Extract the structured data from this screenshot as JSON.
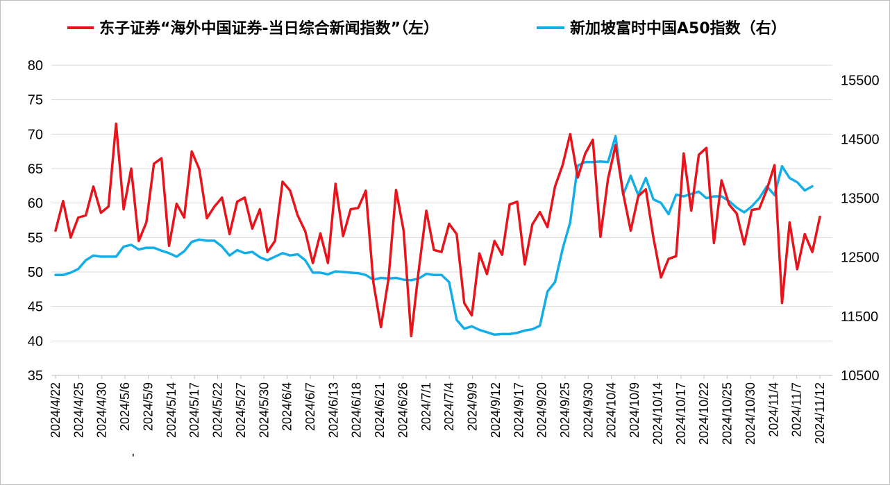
{
  "chart_data": {
    "type": "line",
    "title": "",
    "grid": true,
    "legend_position": "top",
    "left_axis": {
      "ylim": [
        35,
        80
      ],
      "ticks": [
        35,
        40,
        45,
        50,
        55,
        60,
        65,
        70,
        75,
        80
      ]
    },
    "right_axis": {
      "ylim": [
        10500,
        15750
      ],
      "ticks": [
        10500,
        11500,
        12500,
        13500,
        14500,
        15500
      ]
    },
    "x_tick_labels": [
      "2024/4/22",
      "2024/4/25",
      "2024/4/30",
      "2024/5/6",
      "2024/5/9",
      "2024/5/14",
      "2024/5/17",
      "2024/5/22",
      "2024/5/27",
      "2024/5/30",
      "2024/6/4",
      "2024/6/7",
      "2024/6/13",
      "2024/6/18",
      "2024/6/21",
      "2024/6/26",
      "2024/7/1",
      "2024/7/4",
      "2024/9/9",
      "2024/9/12",
      "2024/9/17",
      "2024/9/20",
      "2024/9/25",
      "2024/9/30",
      "2024/10/4",
      "2024/10/9",
      "2024/10/14",
      "2024/10/17",
      "2024/10/22",
      "2024/10/25",
      "2024/10/30",
      "2024/11/4",
      "2024/11/7",
      "2024/11/12"
    ],
    "x_stray_mark": "'",
    "series": [
      {
        "name": "东子证券“海外中国证券-当日综合新闻指数”（左）",
        "axis": "left",
        "color": "#e8141c",
        "values": [
          56.0,
          60.3,
          55.0,
          57.9,
          58.2,
          62.4,
          58.6,
          59.5,
          71.5,
          59.1,
          65.0,
          54.5,
          57.2,
          65.7,
          66.5,
          53.8,
          59.9,
          57.9,
          67.5,
          64.9,
          57.8,
          59.5,
          60.8,
          55.5,
          60.2,
          60.8,
          56.3,
          59.1,
          52.9,
          54.5,
          63.1,
          61.8,
          58.2,
          55.9,
          51.3,
          55.6,
          51.3,
          62.8,
          55.2,
          59.1,
          59.3,
          61.8,
          48.5,
          42.0,
          49.0,
          61.9,
          56.0,
          40.7,
          50.3,
          58.9,
          53.2,
          52.9,
          57.0,
          55.5,
          45.5,
          43.7,
          52.7,
          49.7,
          54.5,
          52.5,
          59.8,
          60.2,
          51.1,
          56.9,
          58.7,
          56.5,
          62.4,
          65.5,
          70.0,
          63.7,
          67.2,
          69.2,
          55.1,
          63.5,
          68.4,
          61.4,
          56.0,
          61.0,
          62.0,
          55.0,
          49.2,
          51.9,
          52.3,
          67.2,
          58.9,
          67.0,
          68.0,
          54.2,
          63.3,
          59.8,
          58.5,
          54.0,
          59.0,
          59.2,
          62.0,
          65.5,
          45.5,
          57.2,
          50.4,
          55.5,
          52.9,
          58.0
        ]
      },
      {
        "name": "新加坡富时中国A50指数（右）",
        "axis": "right",
        "color": "#13aee8",
        "values": [
          12200,
          12200,
          12240,
          12300,
          12450,
          12530,
          12510,
          12510,
          12510,
          12680,
          12710,
          12630,
          12660,
          12660,
          12610,
          12570,
          12510,
          12600,
          12760,
          12800,
          12780,
          12780,
          12680,
          12530,
          12620,
          12570,
          12590,
          12500,
          12450,
          12510,
          12570,
          12530,
          12550,
          12450,
          12240,
          12240,
          12210,
          12260,
          12250,
          12240,
          12230,
          12200,
          12120,
          12150,
          12140,
          12150,
          12120,
          12110,
          12140,
          12220,
          12200,
          12200,
          12080,
          11440,
          11290,
          11330,
          11270,
          11230,
          11190,
          11200,
          11200,
          11220,
          11260,
          11280,
          11340,
          11920,
          12080,
          12640,
          13090,
          14050,
          14110,
          14110,
          14120,
          14110,
          14550,
          13560,
          13880,
          13550,
          13840,
          13480,
          13420,
          13230,
          13560,
          13530,
          13570,
          13610,
          13500,
          13530,
          13530,
          13450,
          13340,
          13260,
          13360,
          13500,
          13700,
          13550,
          14040,
          13840,
          13770,
          13630,
          13700
        ]
      }
    ]
  }
}
